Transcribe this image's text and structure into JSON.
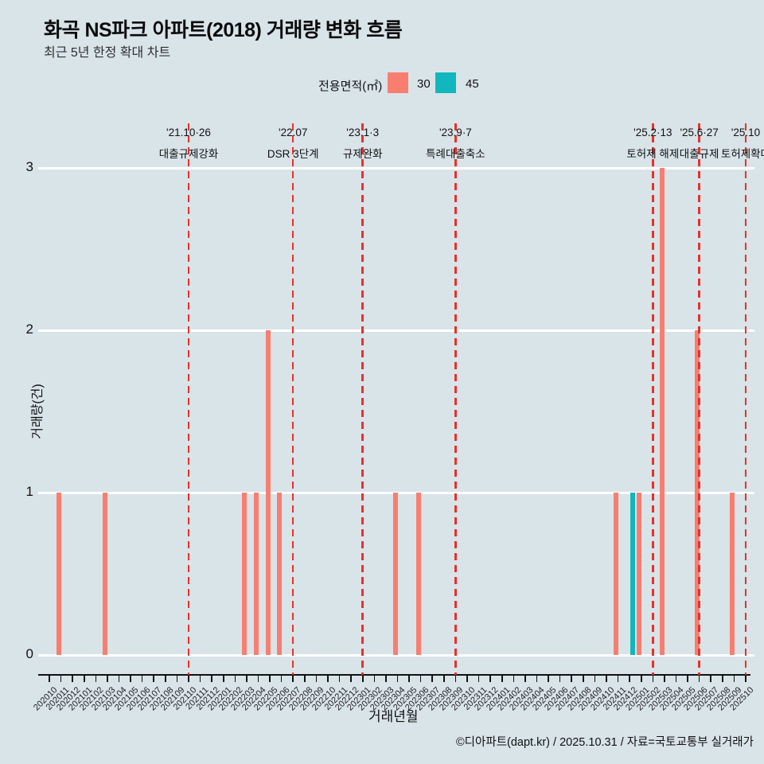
{
  "header": {
    "title": "화곡 NS파크 아파트(2018) 거래량 변화 흐름",
    "subtitle": "최근 5년 한정 확대 차트"
  },
  "legend": {
    "label": "전용면적(㎡)",
    "items": [
      {
        "name": "30",
        "color": "#F87E70"
      },
      {
        "name": "45",
        "color": "#10B7BD"
      }
    ]
  },
  "chart_data": {
    "type": "bar",
    "title": "화곡 NS파크 아파트(2018) 거래량 변화 흐름",
    "xlabel": "거래년월",
    "ylabel": "거래량(건)",
    "ylim": [
      0,
      3
    ],
    "yticks": [
      0,
      1,
      2,
      3
    ],
    "grid": "horizontal-white-lines",
    "legend_position": "top",
    "categories": [
      "202010",
      "202011",
      "202012",
      "202101",
      "202102",
      "202103",
      "202104",
      "202105",
      "202106",
      "202107",
      "202108",
      "202109",
      "202110",
      "202111",
      "202112",
      "202201",
      "202202",
      "202203",
      "202204",
      "202205",
      "202206",
      "202207",
      "202208",
      "202209",
      "202210",
      "202211",
      "202212",
      "202301",
      "202302",
      "202303",
      "202304",
      "202305",
      "202306",
      "202307",
      "202308",
      "202309",
      "202310",
      "202311",
      "202312",
      "202401",
      "202402",
      "202403",
      "202404",
      "202405",
      "202406",
      "202407",
      "202408",
      "202409",
      "202410",
      "202411",
      "202412",
      "202501",
      "202502",
      "202503",
      "202504",
      "202505",
      "202506",
      "202507",
      "202508",
      "202509",
      "202510"
    ],
    "series": [
      {
        "name": "30",
        "color": "#F87E70",
        "points": {
          "202011": 1,
          "202103": 1,
          "202203": 1,
          "202204": 1,
          "202205": 2,
          "202206": 1,
          "202304": 1,
          "202306": 1,
          "202411": 1,
          "202501": 1,
          "202503": 3,
          "202506": 2,
          "202509": 1
        }
      },
      {
        "name": "45",
        "color": "#10B7BD",
        "points": {
          "202412": 1
        }
      }
    ],
    "annotations": [
      {
        "month": "202110",
        "date": "'21.10·26",
        "label": "대출규제강화"
      },
      {
        "month": "202207",
        "date": "'22.07",
        "label": "DSR 3단계"
      },
      {
        "month": "202301",
        "date": "'23.1·3",
        "label": "규제완화"
      },
      {
        "month": "202309",
        "date": "'23.9·7",
        "label": "특례대출축소"
      },
      {
        "month": "202502",
        "date": "'25.2·13",
        "label": "토허제 해제"
      },
      {
        "month": "202506",
        "date": "'25.6·27",
        "label": "대출규제"
      },
      {
        "month": "202510",
        "date": "'25.10",
        "label": "토허제확대"
      }
    ],
    "annotation_line_color": "#E8312A"
  },
  "footer": {
    "credit": "©디아파트(dapt.kr) / 2025.10.31 / 자료=국토교통부 실거래가"
  }
}
